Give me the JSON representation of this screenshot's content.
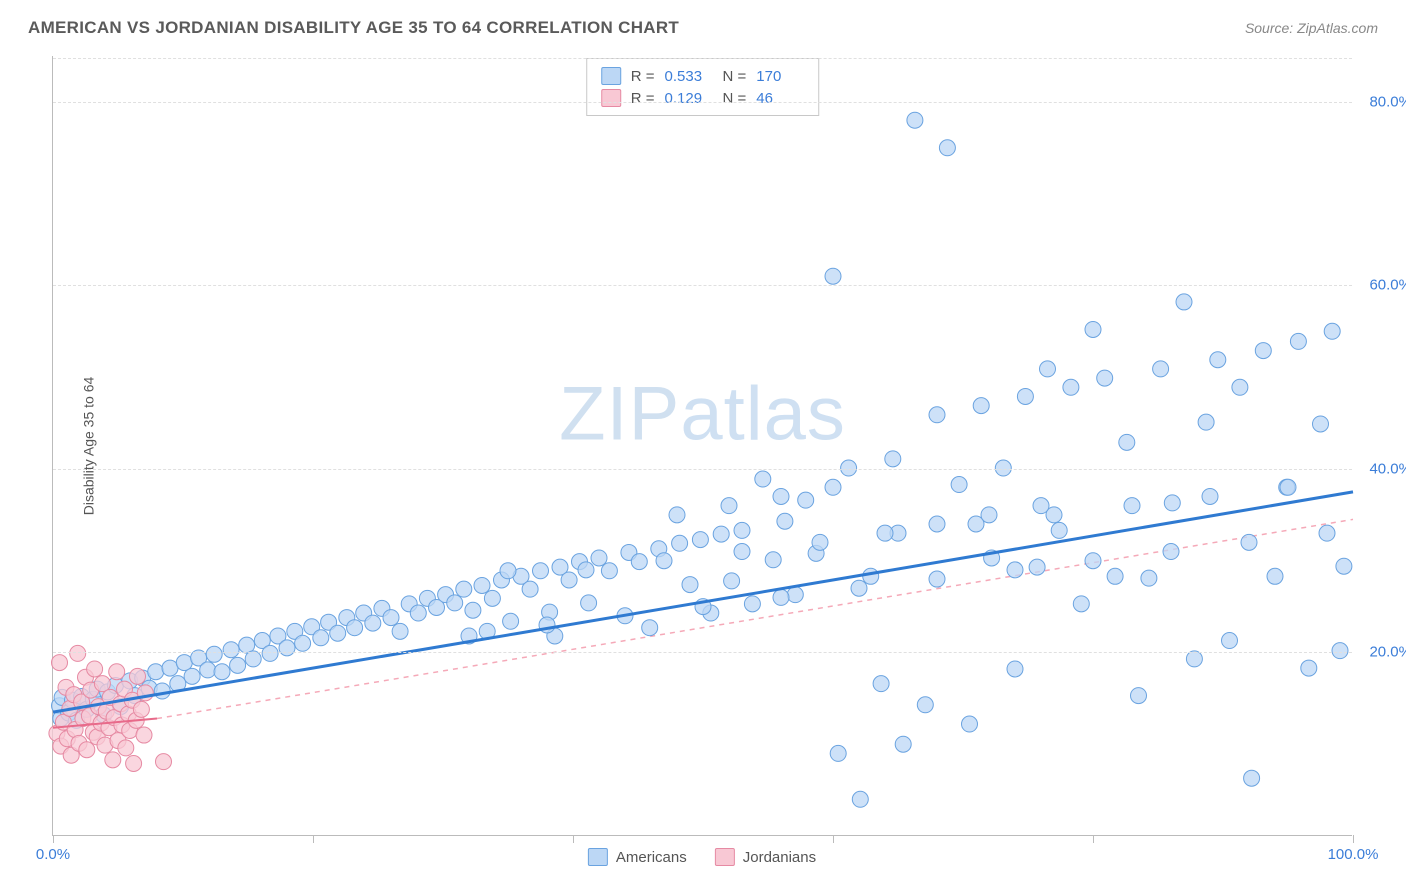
{
  "header": {
    "title": "AMERICAN VS JORDANIAN DISABILITY AGE 35 TO 64 CORRELATION CHART",
    "source": "Source: ZipAtlas.com"
  },
  "watermark": {
    "zip": "ZIP",
    "atlas": "atlas"
  },
  "chart": {
    "type": "scatter",
    "ylabel": "Disability Age 35 to 64",
    "xlim": [
      0,
      100
    ],
    "ylim": [
      0,
      85
    ],
    "xticks": [
      0,
      20,
      40,
      60,
      80,
      100
    ],
    "xtick_labels": {
      "0": "0.0%",
      "100": "100.0%"
    },
    "yticks": [
      20,
      40,
      60,
      80
    ],
    "ytick_labels": {
      "20": "20.0%",
      "40": "40.0%",
      "60": "60.0%",
      "80": "80.0%"
    },
    "background_color": "#ffffff",
    "grid_color": "#e0e0e0",
    "axis_color": "#bbbbbb",
    "tick_label_color": "#3b7dd8",
    "series": [
      {
        "name": "Americans",
        "marker_fill": "#bcd7f5",
        "marker_stroke": "#6aa3e0",
        "marker_radius": 8,
        "trend_color": "#2f7ad1",
        "trend_width": 3,
        "trend_dash": "none",
        "trend": {
          "x1": 0,
          "y1": 13.5,
          "x2": 100,
          "y2": 37.5
        },
        "extrap_color": "#f5a9b8",
        "extrap_dash": "4,4",
        "R": "0.533",
        "N": "170",
        "points": [
          [
            0.5,
            14.2
          ],
          [
            0.7,
            15.1
          ],
          [
            0.6,
            12.8
          ],
          [
            1.2,
            13.4
          ],
          [
            1.5,
            14.8
          ],
          [
            1.8,
            12.6
          ],
          [
            2.2,
            15.2
          ],
          [
            2.6,
            13.8
          ],
          [
            3.1,
            14.9
          ],
          [
            3.4,
            16.0
          ],
          [
            3.9,
            13.2
          ],
          [
            4.2,
            15.7
          ],
          [
            4.8,
            16.4
          ],
          [
            5.2,
            14.1
          ],
          [
            5.9,
            16.9
          ],
          [
            6.3,
            15.3
          ],
          [
            6.9,
            17.2
          ],
          [
            7.4,
            16.1
          ],
          [
            7.9,
            17.9
          ],
          [
            8.4,
            15.8
          ],
          [
            9.0,
            18.3
          ],
          [
            9.6,
            16.6
          ],
          [
            10.1,
            18.9
          ],
          [
            10.7,
            17.4
          ],
          [
            11.2,
            19.4
          ],
          [
            11.9,
            18.1
          ],
          [
            12.4,
            19.8
          ],
          [
            13.0,
            17.9
          ],
          [
            13.7,
            20.3
          ],
          [
            14.2,
            18.6
          ],
          [
            14.9,
            20.8
          ],
          [
            15.4,
            19.3
          ],
          [
            16.1,
            21.3
          ],
          [
            16.7,
            19.9
          ],
          [
            17.3,
            21.8
          ],
          [
            18.0,
            20.5
          ],
          [
            18.6,
            22.3
          ],
          [
            19.2,
            21.0
          ],
          [
            19.9,
            22.8
          ],
          [
            20.6,
            21.6
          ],
          [
            21.2,
            23.3
          ],
          [
            21.9,
            22.1
          ],
          [
            22.6,
            23.8
          ],
          [
            23.2,
            22.7
          ],
          [
            23.9,
            24.3
          ],
          [
            24.6,
            23.2
          ],
          [
            25.3,
            24.8
          ],
          [
            26.0,
            23.8
          ],
          [
            26.7,
            22.3
          ],
          [
            27.4,
            25.3
          ],
          [
            28.1,
            24.3
          ],
          [
            28.8,
            25.9
          ],
          [
            29.5,
            24.9
          ],
          [
            30.2,
            26.3
          ],
          [
            30.9,
            25.4
          ],
          [
            31.6,
            26.9
          ],
          [
            32.3,
            24.6
          ],
          [
            33.0,
            27.3
          ],
          [
            33.8,
            25.9
          ],
          [
            34.5,
            27.9
          ],
          [
            35.2,
            23.4
          ],
          [
            36.0,
            28.3
          ],
          [
            36.7,
            26.9
          ],
          [
            37.5,
            28.9
          ],
          [
            38.2,
            24.4
          ],
          [
            39.0,
            29.3
          ],
          [
            39.7,
            27.9
          ],
          [
            40.5,
            29.9
          ],
          [
            41.2,
            25.4
          ],
          [
            42.0,
            30.3
          ],
          [
            42.8,
            28.9
          ],
          [
            38.6,
            21.8
          ],
          [
            44.3,
            30.9
          ],
          [
            45.1,
            29.9
          ],
          [
            45.9,
            22.7
          ],
          [
            46.6,
            31.3
          ],
          [
            33.4,
            22.3
          ],
          [
            48.2,
            31.9
          ],
          [
            49.0,
            27.4
          ],
          [
            49.8,
            32.3
          ],
          [
            50.6,
            24.3
          ],
          [
            51.4,
            32.9
          ],
          [
            52.2,
            27.8
          ],
          [
            53.0,
            33.3
          ],
          [
            53.8,
            25.3
          ],
          [
            54.6,
            38.9
          ],
          [
            55.4,
            30.1
          ],
          [
            56.3,
            34.3
          ],
          [
            57.1,
            26.3
          ],
          [
            57.9,
            36.6
          ],
          [
            58.7,
            30.8
          ],
          [
            60.0,
            61.0
          ],
          [
            60.4,
            9.0
          ],
          [
            61.2,
            40.1
          ],
          [
            62.1,
            4.0
          ],
          [
            62.9,
            28.3
          ],
          [
            63.7,
            16.6
          ],
          [
            64.6,
            41.1
          ],
          [
            65.4,
            10.0
          ],
          [
            66.3,
            78.0
          ],
          [
            67.1,
            14.3
          ],
          [
            68.0,
            45.9
          ],
          [
            68.8,
            75.0
          ],
          [
            69.7,
            38.3
          ],
          [
            70.5,
            12.2
          ],
          [
            71.4,
            46.9
          ],
          [
            72.2,
            30.3
          ],
          [
            73.1,
            40.1
          ],
          [
            74.0,
            18.2
          ],
          [
            74.8,
            47.9
          ],
          [
            75.7,
            29.3
          ],
          [
            76.5,
            50.9
          ],
          [
            77.4,
            33.3
          ],
          [
            78.3,
            48.9
          ],
          [
            79.1,
            25.3
          ],
          [
            80.0,
            55.2
          ],
          [
            80.9,
            49.9
          ],
          [
            81.7,
            28.3
          ],
          [
            82.6,
            42.9
          ],
          [
            83.5,
            15.3
          ],
          [
            84.3,
            28.1
          ],
          [
            85.2,
            50.9
          ],
          [
            86.1,
            36.3
          ],
          [
            87.0,
            58.2
          ],
          [
            87.8,
            19.3
          ],
          [
            88.7,
            45.1
          ],
          [
            89.6,
            51.9
          ],
          [
            90.5,
            21.3
          ],
          [
            91.3,
            48.9
          ],
          [
            92.2,
            6.3
          ],
          [
            93.1,
            52.9
          ],
          [
            94.0,
            28.3
          ],
          [
            94.9,
            38.0
          ],
          [
            95.8,
            53.9
          ],
          [
            96.6,
            18.3
          ],
          [
            97.5,
            44.9
          ],
          [
            98.4,
            55.0
          ],
          [
            99.0,
            20.2
          ],
          [
            99.3,
            29.4
          ],
          [
            32.0,
            21.8
          ],
          [
            35.0,
            28.9
          ],
          [
            38.0,
            23.0
          ],
          [
            41.0,
            29.0
          ],
          [
            44.0,
            24.0
          ],
          [
            47.0,
            30.0
          ],
          [
            50.0,
            25.0
          ],
          [
            53.0,
            31.0
          ],
          [
            56.0,
            26.0
          ],
          [
            59.0,
            32.0
          ],
          [
            62.0,
            27.0
          ],
          [
            65.0,
            33.0
          ],
          [
            68.0,
            28.0
          ],
          [
            71.0,
            34.0
          ],
          [
            74.0,
            29.0
          ],
          [
            77.0,
            35.0
          ],
          [
            80.0,
            30.0
          ],
          [
            83.0,
            36.0
          ],
          [
            86.0,
            31.0
          ],
          [
            89.0,
            37.0
          ],
          [
            92.0,
            32.0
          ],
          [
            95.0,
            38.0
          ],
          [
            98.0,
            33.0
          ],
          [
            48.0,
            35.0
          ],
          [
            52.0,
            36.0
          ],
          [
            56.0,
            37.0
          ],
          [
            60.0,
            38.0
          ],
          [
            64.0,
            33.0
          ],
          [
            68.0,
            34.0
          ],
          [
            72.0,
            35.0
          ],
          [
            76.0,
            36.0
          ]
        ]
      },
      {
        "name": "Jordanians",
        "marker_fill": "#f8c8d4",
        "marker_stroke": "#e68aa3",
        "marker_radius": 8,
        "trend_color": "#e86a8a",
        "trend_width": 2,
        "trend_dash": "none",
        "trend": {
          "x1": 0,
          "y1": 11.8,
          "x2": 8,
          "y2": 12.8
        },
        "extrap_color": "#f5a9b8",
        "extrap_dash": "5,5",
        "extrap": {
          "x1": 8,
          "y1": 12.8,
          "x2": 100,
          "y2": 34.5
        },
        "R": "0.129",
        "N": "46",
        "points": [
          [
            0.3,
            11.2
          ],
          [
            0.5,
            18.9
          ],
          [
            0.6,
            9.8
          ],
          [
            0.8,
            12.4
          ],
          [
            1.0,
            16.2
          ],
          [
            1.1,
            10.6
          ],
          [
            1.3,
            13.9
          ],
          [
            1.4,
            8.8
          ],
          [
            1.6,
            15.4
          ],
          [
            1.7,
            11.6
          ],
          [
            1.9,
            19.9
          ],
          [
            2.0,
            10.1
          ],
          [
            2.2,
            14.6
          ],
          [
            2.3,
            12.8
          ],
          [
            2.5,
            17.3
          ],
          [
            2.6,
            9.4
          ],
          [
            2.8,
            13.1
          ],
          [
            2.9,
            15.9
          ],
          [
            3.1,
            11.3
          ],
          [
            3.2,
            18.2
          ],
          [
            3.4,
            10.8
          ],
          [
            3.5,
            14.1
          ],
          [
            3.7,
            12.3
          ],
          [
            3.8,
            16.6
          ],
          [
            4.0,
            9.9
          ],
          [
            4.1,
            13.6
          ],
          [
            4.3,
            11.8
          ],
          [
            4.4,
            15.1
          ],
          [
            4.6,
            8.3
          ],
          [
            4.7,
            12.9
          ],
          [
            4.9,
            17.9
          ],
          [
            5.0,
            10.4
          ],
          [
            5.2,
            14.4
          ],
          [
            5.3,
            12.1
          ],
          [
            5.5,
            16.0
          ],
          [
            5.6,
            9.6
          ],
          [
            5.8,
            13.3
          ],
          [
            5.9,
            11.5
          ],
          [
            6.1,
            14.8
          ],
          [
            6.2,
            7.9
          ],
          [
            6.4,
            12.6
          ],
          [
            6.5,
            17.4
          ],
          [
            8.5,
            8.1
          ],
          [
            6.8,
            13.8
          ],
          [
            7.0,
            11.0
          ],
          [
            7.1,
            15.6
          ]
        ]
      }
    ],
    "legend_top": [
      {
        "swatch_fill": "#bcd7f5",
        "swatch_stroke": "#6aa3e0",
        "R_label": "R =",
        "R": "0.533",
        "N_label": "N =",
        "N": "170"
      },
      {
        "swatch_fill": "#f8c8d4",
        "swatch_stroke": "#e68aa3",
        "R_label": "R =",
        "R": "0.129",
        "N_label": "N =",
        "N": "46"
      }
    ],
    "legend_bottom": [
      {
        "swatch_fill": "#bcd7f5",
        "swatch_stroke": "#6aa3e0",
        "label": "Americans"
      },
      {
        "swatch_fill": "#f8c8d4",
        "swatch_stroke": "#e68aa3",
        "label": "Jordanians"
      }
    ]
  }
}
